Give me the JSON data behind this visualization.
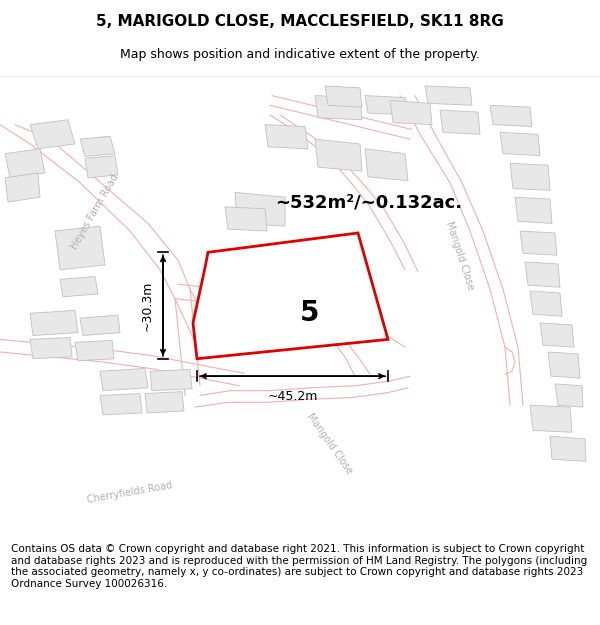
{
  "title": "5, MARIGOLD CLOSE, MACCLESFIELD, SK11 8RG",
  "subtitle": "Map shows position and indicative extent of the property.",
  "footer": "Contains OS data © Crown copyright and database right 2021. This information is subject to Crown copyright and database rights 2023 and is reproduced with the permission of HM Land Registry. The polygons (including the associated geometry, namely x, y co-ordinates) are subject to Crown copyright and database rights 2023 Ordnance Survey 100026316.",
  "area_label": "~532m²/~0.132ac.",
  "width_label": "~45.2m",
  "height_label": "~30.3m",
  "number_label": "5",
  "map_bg": "#ffffff",
  "plot_edge_color": "#dd0000",
  "plot_fill_color": "#ffffff",
  "road_outline_color": "#f0b0b0",
  "building_fill": "#e8e8e8",
  "building_edge": "#c0c0c0",
  "road_fill": "#ffffff",
  "street_label_color": "#b0b0b0",
  "title_fontsize": 11,
  "subtitle_fontsize": 9,
  "footer_fontsize": 7.5,
  "annotation_color": "#000000"
}
